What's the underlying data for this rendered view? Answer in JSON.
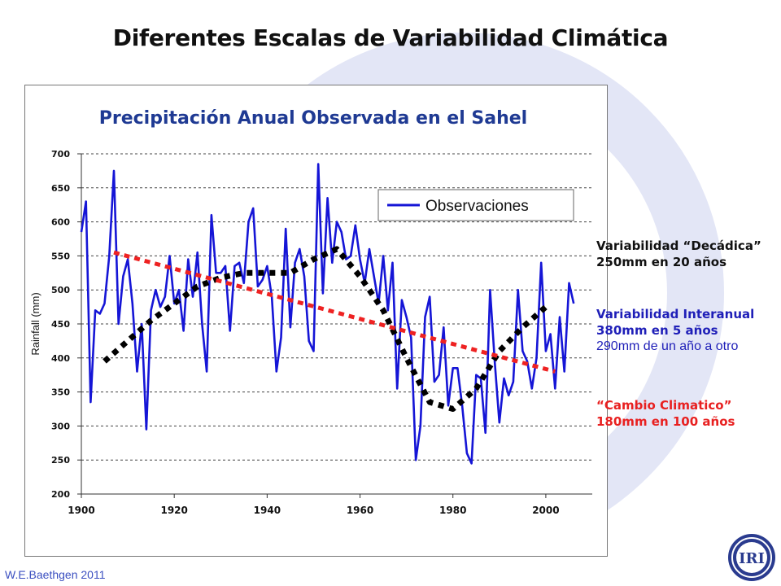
{
  "slide": {
    "title": "Diferentes Escalas de Variabilidad Climática",
    "credit": "W.E.Baethgen 2011",
    "logo_text": "IRI"
  },
  "annotations": {
    "decadal": {
      "line1": "Variabilidad “Decádica”",
      "line2": "250mm en 20 años",
      "color": "#111111"
    },
    "interannual": {
      "line1": "Variabilidad Interanual",
      "line2": "380mm en 5 años",
      "line3": "290mm de un año a otro",
      "color": "#1f1fb8"
    },
    "climate_change": {
      "line1": "“Cambio Climatico”",
      "line2": "180mm en 100 años",
      "color": "#e82020"
    }
  },
  "chart_data": {
    "type": "line",
    "title": "Precipitación Anual Observada en el Sahel",
    "xlabel": "",
    "ylabel": "Rainfall (mm)",
    "xlim": [
      1900,
      2010
    ],
    "ylim": [
      200,
      700
    ],
    "xticks": [
      1900,
      1920,
      1940,
      1960,
      1980,
      2000
    ],
    "yticks": [
      200,
      250,
      300,
      350,
      400,
      450,
      500,
      550,
      600,
      650,
      700
    ],
    "grid": "horizontal dashed",
    "legend": {
      "position": "top-right",
      "entries": [
        "Observaciones"
      ]
    },
    "colors": {
      "observations": "#1515d6",
      "trend": "#ee2222",
      "decadal": "#000000",
      "title": "#1f3a93"
    },
    "series": [
      {
        "name": "Observaciones",
        "style": "solid",
        "x": [
          1900,
          1901,
          1902,
          1903,
          1904,
          1905,
          1906,
          1907,
          1908,
          1909,
          1910,
          1911,
          1912,
          1913,
          1914,
          1915,
          1916,
          1917,
          1918,
          1919,
          1920,
          1921,
          1922,
          1923,
          1924,
          1925,
          1926,
          1927,
          1928,
          1929,
          1930,
          1931,
          1932,
          1933,
          1934,
          1935,
          1936,
          1937,
          1938,
          1939,
          1940,
          1941,
          1942,
          1943,
          1944,
          1945,
          1946,
          1947,
          1948,
          1949,
          1950,
          1951,
          1952,
          1953,
          1954,
          1955,
          1956,
          1957,
          1958,
          1959,
          1960,
          1961,
          1962,
          1963,
          1964,
          1965,
          1966,
          1967,
          1968,
          1969,
          1970,
          1971,
          1972,
          1973,
          1974,
          1975,
          1976,
          1977,
          1978,
          1979,
          1980,
          1981,
          1982,
          1983,
          1984,
          1985,
          1986,
          1987,
          1988,
          1989,
          1990,
          1991,
          1992,
          1993,
          1994,
          1995,
          1996,
          1997,
          1998,
          1999,
          2000,
          2001,
          2002,
          2003,
          2004,
          2005,
          2006
        ],
        "values": [
          585,
          630,
          335,
          470,
          465,
          480,
          550,
          675,
          450,
          520,
          545,
          480,
          380,
          450,
          295,
          470,
          500,
          475,
          490,
          550,
          480,
          500,
          440,
          545,
          490,
          555,
          450,
          380,
          610,
          525,
          525,
          535,
          440,
          535,
          540,
          510,
          600,
          620,
          505,
          515,
          535,
          490,
          380,
          430,
          590,
          445,
          540,
          560,
          520,
          425,
          410,
          685,
          495,
          635,
          540,
          600,
          585,
          545,
          550,
          595,
          545,
          510,
          560,
          520,
          480,
          550,
          470,
          540,
          355,
          485,
          460,
          430,
          250,
          300,
          460,
          490,
          365,
          375,
          445,
          330,
          385,
          385,
          330,
          260,
          245,
          375,
          370,
          290,
          500,
          395,
          305,
          370,
          345,
          365,
          500,
          410,
          395,
          355,
          400,
          540,
          410,
          435,
          355,
          460,
          380,
          510,
          480
        ]
      },
      {
        "name": "",
        "style": "dotted",
        "x": [
          1905,
          1910,
          1915,
          1920,
          1925,
          1930,
          1935,
          1940,
          1945,
          1950,
          1955,
          1960,
          1965,
          1970,
          1975,
          1980,
          1985,
          1990,
          1995,
          2000
        ],
        "values": [
          395,
          425,
          455,
          480,
          505,
          518,
          525,
          525,
          525,
          545,
          560,
          520,
          470,
          400,
          335,
          325,
          355,
          410,
          445,
          475
        ]
      },
      {
        "name": "",
        "style": "dashed-trend",
        "x": [
          1907,
          2002
        ],
        "values": [
          555,
          380
        ]
      }
    ]
  }
}
